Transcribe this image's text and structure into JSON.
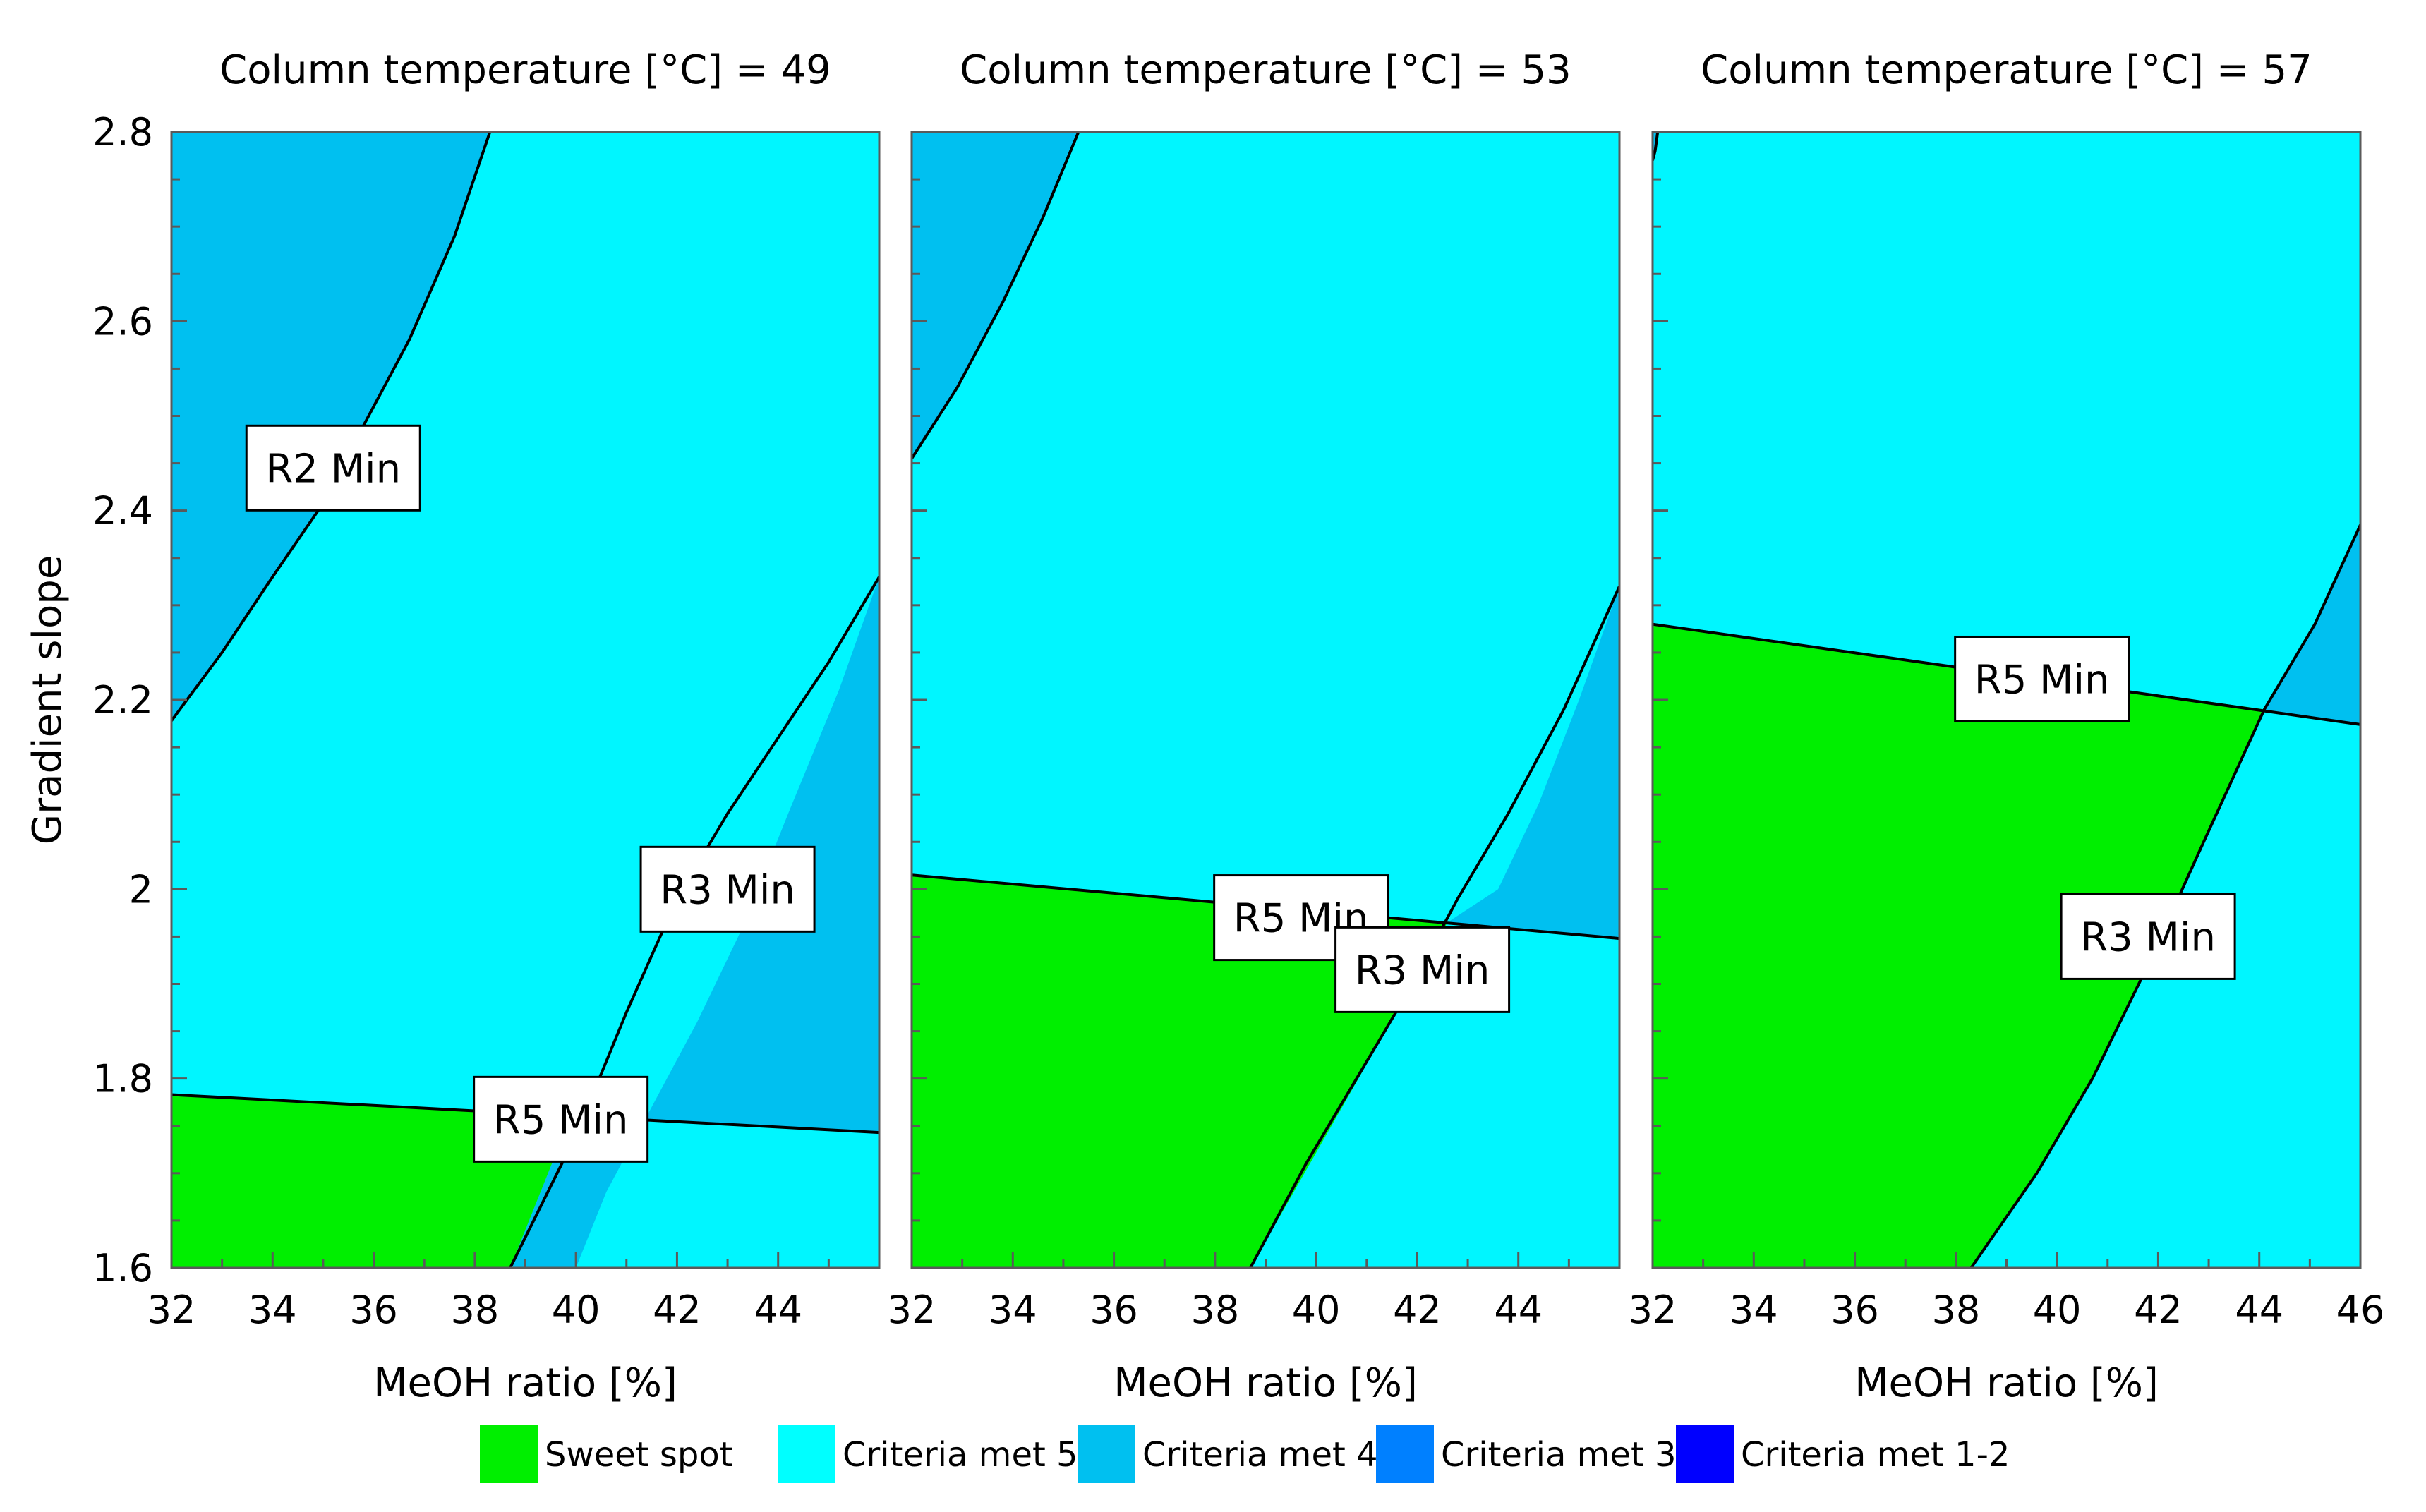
{
  "chart_data": [
    {
      "type": "contour",
      "title": "Column temperature [°C] = 49",
      "xlabel": "MeOH ratio [%]",
      "ylabel": "Gradient slope",
      "xlim": [
        32,
        46
      ],
      "ylim": [
        1.6,
        2.8
      ],
      "xticks": [
        "32",
        "34",
        "36",
        "38",
        "40",
        "42",
        "44"
      ],
      "yticks": [
        "1.6",
        "1.8",
        "2",
        "2.2",
        "2.4",
        "2.6",
        "2.8"
      ],
      "regions": [
        {
          "category": "Sweet spot",
          "polygon": [
            [
              32,
              1.6
            ],
            [
              32,
              1.783
            ],
            [
              39.9,
              1.76
            ],
            [
              38.7,
              1.6
            ]
          ]
        },
        {
          "category": "Criteria met 4",
          "polygon": [
            [
              39.9,
              1.76
            ],
            [
              46,
              1.743
            ],
            [
              46,
              2.33
            ],
            [
              45.2,
              2.21
            ],
            [
              44.2,
              2.08
            ],
            [
              43.3,
              1.96
            ],
            [
              42.4,
              1.86
            ],
            [
              41.5,
              1.77
            ],
            [
              40.6,
              1.68
            ],
            [
              40,
              1.6
            ],
            [
              38.7,
              1.6
            ]
          ]
        },
        {
          "category": "Criteria met 4",
          "polygon": [
            [
              32,
              2.8
            ],
            [
              38.3,
              2.8
            ],
            [
              37.6,
              2.69
            ],
            [
              36.7,
              2.58
            ],
            [
              35.8,
              2.49
            ],
            [
              34.9,
              2.4
            ],
            [
              34,
              2.33
            ],
            [
              33,
              2.25
            ],
            [
              32,
              2.178
            ]
          ]
        }
      ],
      "contour_lines": [
        {
          "label": "R2 Min",
          "points": [
            [
              32,
              2.178
            ],
            [
              33,
              2.25
            ],
            [
              34,
              2.33
            ],
            [
              34.9,
              2.4
            ],
            [
              35.8,
              2.49
            ],
            [
              36.7,
              2.58
            ],
            [
              37.6,
              2.69
            ],
            [
              38.3,
              2.8
            ]
          ]
        },
        {
          "label": "R3 Min",
          "points": [
            [
              38.7,
              1.6
            ],
            [
              40,
              1.74
            ],
            [
              41,
              1.87
            ],
            [
              42,
              1.99
            ],
            [
              43,
              2.08
            ],
            [
              44,
              2.16
            ],
            [
              45,
              2.24
            ],
            [
              46,
              2.33
            ]
          ]
        },
        {
          "label": "R5 Min",
          "points": [
            [
              32,
              1.783
            ],
            [
              46,
              1.743
            ]
          ]
        }
      ],
      "labels": [
        {
          "text": "R2 Min",
          "x": 35.2,
          "y": 2.445
        },
        {
          "text": "R3 Min",
          "x": 43.0,
          "y": 2.0
        },
        {
          "text": "R5 Min",
          "x": 39.7,
          "y": 1.757
        }
      ]
    },
    {
      "type": "contour",
      "title": "Column temperature [°C] = 53",
      "xlabel": "MeOH ratio [%]",
      "ylabel": "",
      "xlim": [
        32,
        46
      ],
      "ylim": [
        1.6,
        2.8
      ],
      "xticks": [
        "32",
        "34",
        "36",
        "38",
        "40",
        "42",
        "44"
      ],
      "yticks": [],
      "regions": [
        {
          "category": "Sweet spot",
          "polygon": [
            [
              32,
              1.6
            ],
            [
              32,
              2.015
            ],
            [
              42.6,
              1.965
            ],
            [
              38.7,
              1.6
            ]
          ]
        },
        {
          "category": "Criteria met 4",
          "polygon": [
            [
              42.6,
              1.965
            ],
            [
              46,
              1.948
            ],
            [
              46,
              2.32
            ],
            [
              45.2,
              2.2
            ],
            [
              44.4,
              2.09
            ],
            [
              43.6,
              2.0
            ]
          ]
        },
        {
          "category": "Criteria met 4",
          "polygon": [
            [
              32,
              2.8
            ],
            [
              35.3,
              2.8
            ],
            [
              34.6,
              2.71
            ],
            [
              33.8,
              2.62
            ],
            [
              32.9,
              2.53
            ],
            [
              32,
              2.455
            ]
          ]
        }
      ],
      "contour_lines": [
        {
          "label": "R2 Min",
          "points": [
            [
              32,
              2.455
            ],
            [
              32.9,
              2.53
            ],
            [
              33.8,
              2.62
            ],
            [
              34.6,
              2.71
            ],
            [
              35.3,
              2.8
            ]
          ]
        },
        {
          "label": "R3 Min",
          "points": [
            [
              38.7,
              1.6
            ],
            [
              39.8,
              1.71
            ],
            [
              40.8,
              1.8
            ],
            [
              41.8,
              1.89
            ],
            [
              42.8,
              1.99
            ],
            [
              43.8,
              2.08
            ],
            [
              44.9,
              2.19
            ],
            [
              46,
              2.32
            ]
          ]
        },
        {
          "label": "R5 Min",
          "points": [
            [
              32,
              2.015
            ],
            [
              46,
              1.948
            ]
          ]
        }
      ],
      "labels": [
        {
          "text": "R5 Min",
          "x": 39.7,
          "y": 1.97
        },
        {
          "text": "R3 Min",
          "x": 42.1,
          "y": 1.915
        }
      ]
    },
    {
      "type": "contour",
      "title": "Column temperature [°C] = 57",
      "xlabel": "MeOH ratio [%]",
      "ylabel": "",
      "xlim": [
        32,
        46
      ],
      "ylim": [
        1.6,
        2.8
      ],
      "xticks": [
        "32",
        "34",
        "36",
        "38",
        "40",
        "42",
        "44",
        "46"
      ],
      "yticks": [],
      "regions": [
        {
          "category": "Sweet spot",
          "polygon": [
            [
              32,
              1.6
            ],
            [
              32,
              2.28
            ],
            [
              44.1,
              2.19
            ],
            [
              42.9,
              2.05
            ],
            [
              41.8,
              1.92
            ],
            [
              40.7,
              1.8
            ],
            [
              39.6,
              1.7
            ],
            [
              38.3,
              1.6
            ]
          ]
        },
        {
          "category": "Criteria met 4",
          "polygon": [
            [
              44.1,
              2.19
            ],
            [
              46,
              2.174
            ],
            [
              46,
              2.385
            ],
            [
              45.1,
              2.28
            ]
          ]
        },
        {
          "category": "Criteria met 4",
          "polygon": [
            [
              32,
              2.8
            ],
            [
              32.1,
              2.8
            ],
            [
              32.05,
              2.78
            ],
            [
              32,
              2.77
            ]
          ]
        }
      ],
      "contour_lines": [
        {
          "label": "R2 Min",
          "points": [
            [
              32,
              2.77
            ],
            [
              32.05,
              2.78
            ],
            [
              32.1,
              2.8
            ]
          ]
        },
        {
          "label": "R3 Min",
          "points": [
            [
              38.3,
              1.6
            ],
            [
              39.6,
              1.7
            ],
            [
              40.7,
              1.8
            ],
            [
              41.8,
              1.92
            ],
            [
              42.9,
              2.05
            ],
            [
              44.1,
              2.19
            ],
            [
              45.1,
              2.28
            ],
            [
              46,
              2.385
            ]
          ]
        },
        {
          "label": "R5 Min",
          "points": [
            [
              32,
              2.28
            ],
            [
              46,
              2.174
            ]
          ]
        }
      ],
      "labels": [
        {
          "text": "R5 Min",
          "x": 39.7,
          "y": 2.222
        },
        {
          "text": "R3 Min",
          "x": 41.8,
          "y": 1.95
        }
      ]
    }
  ],
  "legend": {
    "position": "bottom",
    "items": [
      {
        "label": "Sweet spot",
        "color": "#00ef00"
      },
      {
        "label": "Criteria met 5",
        "color": "#00ffff"
      },
      {
        "label": "Criteria met 4",
        "color": "#00c0f0"
      },
      {
        "label": "Criteria met 3",
        "color": "#0080ff"
      },
      {
        "label": "Criteria met 1-2",
        "color": "#0000ff"
      }
    ]
  },
  "colors": {
    "background_region": "#00f6ff",
    "line": "#000000",
    "axis": "#5a5a5a"
  }
}
